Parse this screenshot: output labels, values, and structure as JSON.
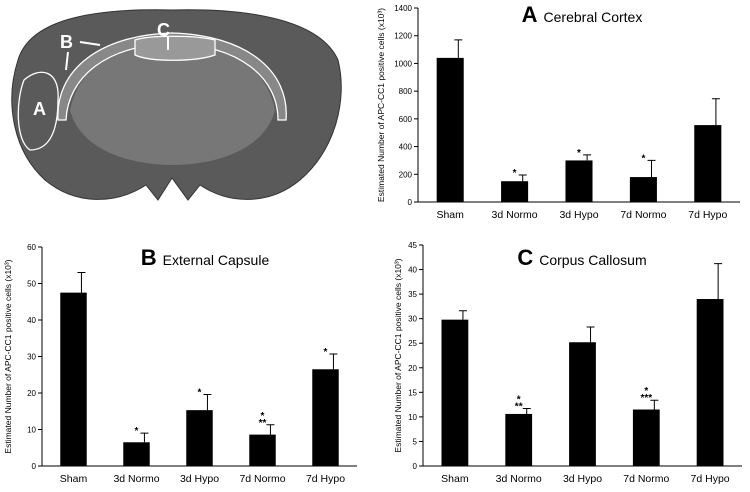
{
  "image_labels": [
    "A",
    "B",
    "C"
  ],
  "chart_data": [
    {
      "type": "bar",
      "panel_label": "A",
      "title": "Cerebral Cortex",
      "y_label": "Estimated Number of APC-CC1 positive cells (x10³)",
      "categories": [
        "Sham",
        "3d Normo",
        "3d Hypo",
        "7d Normo",
        "7d Hypo"
      ],
      "values": [
        1040,
        150,
        300,
        180,
        555
      ],
      "errors": [
        130,
        45,
        40,
        120,
        190
      ],
      "annotations": [
        [],
        [
          "*"
        ],
        [
          "*"
        ],
        [
          "*"
        ],
        []
      ],
      "color": "#000000",
      "ylim": [
        0,
        1400
      ],
      "yticks": [
        0,
        200,
        400,
        600,
        800,
        1000,
        1200,
        1400
      ]
    },
    {
      "type": "bar",
      "panel_label": "B",
      "title": "External Capsule",
      "y_label": "Estimated Number of APC-CC1 positive cells (x10³)",
      "categories": [
        "Sham",
        "3d Normo",
        "3d Hypo",
        "7d Normo",
        "7d Hypo"
      ],
      "values": [
        47.5,
        6.5,
        15.3,
        8.6,
        26.5
      ],
      "errors": [
        5.5,
        2.5,
        4.3,
        2.7,
        4.2
      ],
      "annotations": [
        [],
        [
          "*"
        ],
        [
          "*"
        ],
        [
          "*",
          "**"
        ],
        [
          "*"
        ]
      ],
      "color": "#000000",
      "ylim": [
        0,
        60
      ],
      "yticks": [
        0,
        10,
        20,
        30,
        40,
        50,
        60
      ]
    },
    {
      "type": "bar",
      "panel_label": "C",
      "title": "Corpus Callosum",
      "y_label": "Estimated Number of APC-CC1 positive cells (x10³)",
      "categories": [
        "Sham",
        "3d Normo",
        "3d Hypo",
        "7d Normo",
        "7d Hypo"
      ],
      "values": [
        29.8,
        10.6,
        25.2,
        11.5,
        34
      ],
      "errors": [
        1.8,
        1.1,
        3.1,
        1.9,
        7.2
      ],
      "annotations": [
        [],
        [
          "*",
          "**"
        ],
        [],
        [
          "*",
          "***"
        ],
        []
      ],
      "color": "#000000",
      "ylim": [
        0,
        45
      ],
      "yticks": [
        0,
        5,
        10,
        15,
        20,
        25,
        30,
        35,
        40,
        45
      ]
    }
  ]
}
